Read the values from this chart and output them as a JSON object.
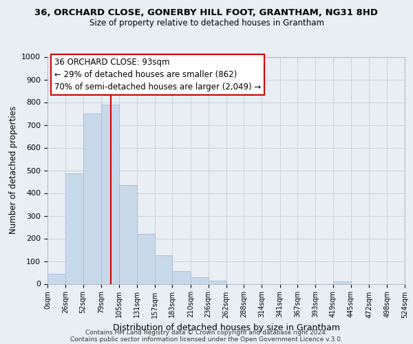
{
  "title": "36, ORCHARD CLOSE, GONERBY HILL FOOT, GRANTHAM, NG31 8HD",
  "subtitle": "Size of property relative to detached houses in Grantham",
  "xlabel": "Distribution of detached houses by size in Grantham",
  "ylabel": "Number of detached properties",
  "bar_edges": [
    0,
    26,
    52,
    79,
    105,
    131,
    157,
    183,
    210,
    236,
    262,
    288,
    314,
    341,
    367,
    393,
    419,
    445,
    472,
    498,
    524
  ],
  "bar_heights": [
    45,
    485,
    750,
    790,
    435,
    220,
    125,
    55,
    28,
    15,
    0,
    0,
    0,
    0,
    0,
    0,
    10,
    0,
    0,
    0
  ],
  "bar_color": "#c8d8eb",
  "bar_edgecolor": "#a8c0d8",
  "property_line_x": 93,
  "property_line_color": "#cc0000",
  "annotation_line1": "36 ORCHARD CLOSE: 93sqm",
  "annotation_line2": "← 29% of detached houses are smaller (862)",
  "annotation_line3": "70% of semi-detached houses are larger (2,049) →",
  "annotation_box_facecolor": "#ffffff",
  "annotation_box_edgecolor": "#cc0000",
  "xlim": [
    0,
    524
  ],
  "ylim": [
    0,
    1000
  ],
  "yticks": [
    0,
    100,
    200,
    300,
    400,
    500,
    600,
    700,
    800,
    900,
    1000
  ],
  "xtick_labels": [
    "0sqm",
    "26sqm",
    "52sqm",
    "79sqm",
    "105sqm",
    "131sqm",
    "157sqm",
    "183sqm",
    "210sqm",
    "236sqm",
    "262sqm",
    "288sqm",
    "314sqm",
    "341sqm",
    "367sqm",
    "393sqm",
    "419sqm",
    "445sqm",
    "472sqm",
    "498sqm",
    "524sqm"
  ],
  "xtick_positions": [
    0,
    26,
    52,
    79,
    105,
    131,
    157,
    183,
    210,
    236,
    262,
    288,
    314,
    341,
    367,
    393,
    419,
    445,
    472,
    498,
    524
  ],
  "footer_line1": "Contains HM Land Registry data © Crown copyright and database right 2024.",
  "footer_line2": "Contains public sector information licensed under the Open Government Licence v.3.0.",
  "grid_color": "#c8d4de",
  "background_color": "#e8eef4"
}
